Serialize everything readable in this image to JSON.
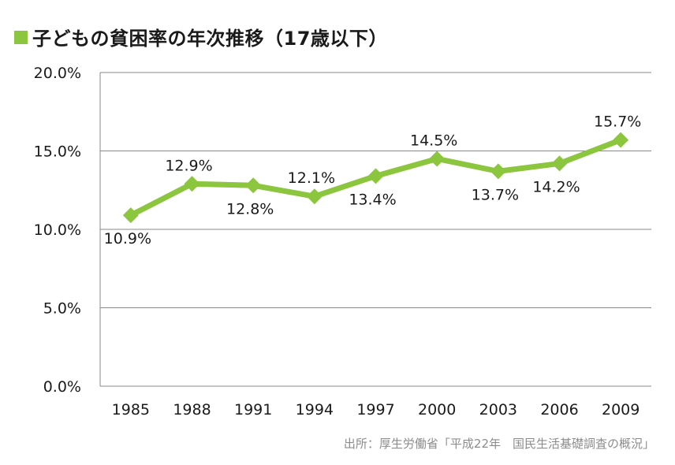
{
  "title": "子どもの貧困率の年次推移（17歳以下）",
  "source": "出所：厚生労働省「平成22年　国民生活基礎調査の概況」",
  "colors": {
    "accent": "#8cc63f",
    "grid": "#888888",
    "text": "#1a1a1a",
    "source": "#8c8c8c"
  },
  "chart_data": {
    "type": "line",
    "categories": [
      "1985",
      "1988",
      "1991",
      "1994",
      "1997",
      "2000",
      "2003",
      "2006",
      "2009"
    ],
    "series": [
      {
        "values": [
          10.9,
          12.9,
          12.8,
          12.1,
          13.4,
          14.5,
          13.7,
          14.2,
          15.7
        ],
        "labels": [
          "10.9%",
          "12.9%",
          "12.8%",
          "12.1%",
          "13.4%",
          "14.5%",
          "13.7%",
          "14.2%",
          "15.7%"
        ],
        "label_positions": [
          "below",
          "above",
          "below",
          "above",
          "below",
          "above",
          "below",
          "below",
          "above"
        ]
      }
    ],
    "yticks": [
      0,
      5,
      10,
      15,
      20
    ],
    "ytick_labels": [
      "0.0%",
      "5.0%",
      "10.0%",
      "15.0%",
      "20.0%"
    ],
    "ylim": [
      0,
      20
    ],
    "grid": true,
    "marker": "diamond"
  }
}
